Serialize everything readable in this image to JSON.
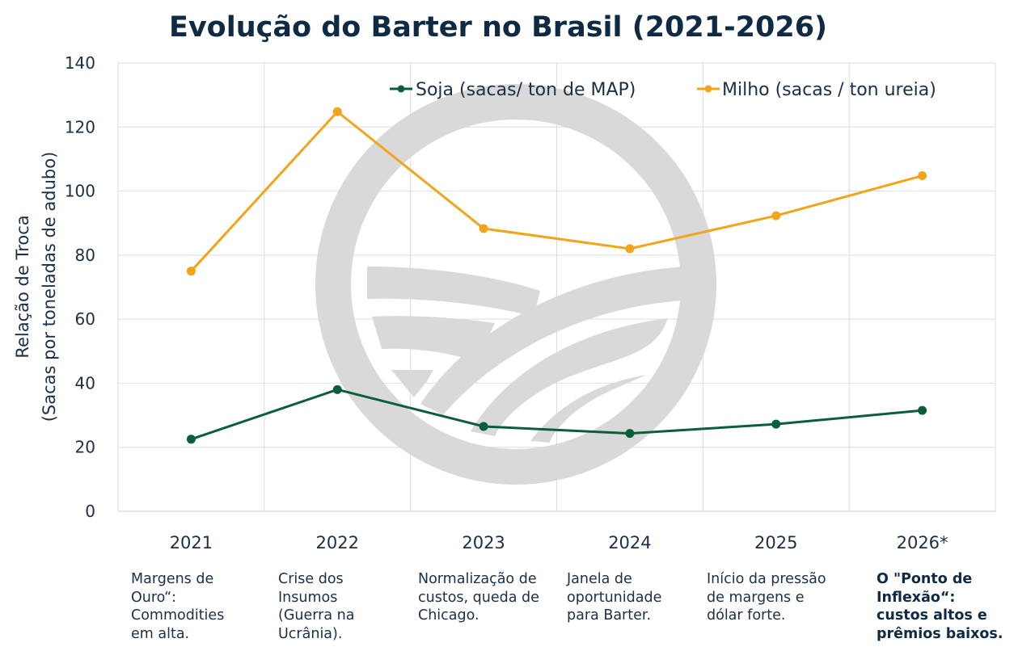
{
  "chart_data": {
    "type": "line",
    "title": "Evolução do Barter no Brasil (2021-2026)",
    "xlabel": "",
    "ylabel_line1": "Relação de Troca",
    "ylabel_line2": "(Sacas por toneladas de adubo)",
    "categories": [
      "2021",
      "2022",
      "2023",
      "2024",
      "2025",
      "2026*"
    ],
    "ylim": [
      0,
      140
    ],
    "yticks": [
      0,
      20,
      40,
      60,
      80,
      100,
      120,
      140
    ],
    "ytick_labels": [
      "0",
      "20",
      "40",
      "60",
      "80",
      "100",
      "120",
      "140"
    ],
    "grid": true,
    "legend_position": "top-right",
    "series": [
      {
        "name": "Soja (sacas/ ton de MAP)",
        "color": "#0b5e3a",
        "values": [
          22.5,
          38,
          26.5,
          24.3,
          27.2,
          31.5
        ]
      },
      {
        "name": "Milho (sacas / ton ureia)",
        "color": "#f2a51a",
        "values": [
          75,
          124.8,
          88.3,
          82,
          92.3,
          104.8
        ]
      }
    ],
    "annotations": [
      {
        "year": "2021",
        "text": "Margens de\nOuro“:\nCommodities\nem alta.",
        "bold": false
      },
      {
        "year": "2022",
        "text": "Crise dos\nInsumos\n(Guerra na\nUcrânia).",
        "bold": false
      },
      {
        "year": "2023",
        "text": "Normalização de\ncustos, queda de\nChicago.",
        "bold": false
      },
      {
        "year": "2024",
        "text": "Janela de\noportunidade\npara Barter.",
        "bold": false
      },
      {
        "year": "2025",
        "text": "Início da pressão\nde margens e\ndólar forte.",
        "bold": false
      },
      {
        "year": "2026*",
        "text": "O \"Ponto de\nInflexão“:\ncustos altos e\nprêmios baixos.",
        "bold": true
      }
    ]
  },
  "colors": {
    "title": "#0f2a44",
    "text": "#1b2f45",
    "grid": "#e3e3e3",
    "watermark": "#d9d9d9"
  },
  "watermark_icon": "leaf-field-circle-logo"
}
